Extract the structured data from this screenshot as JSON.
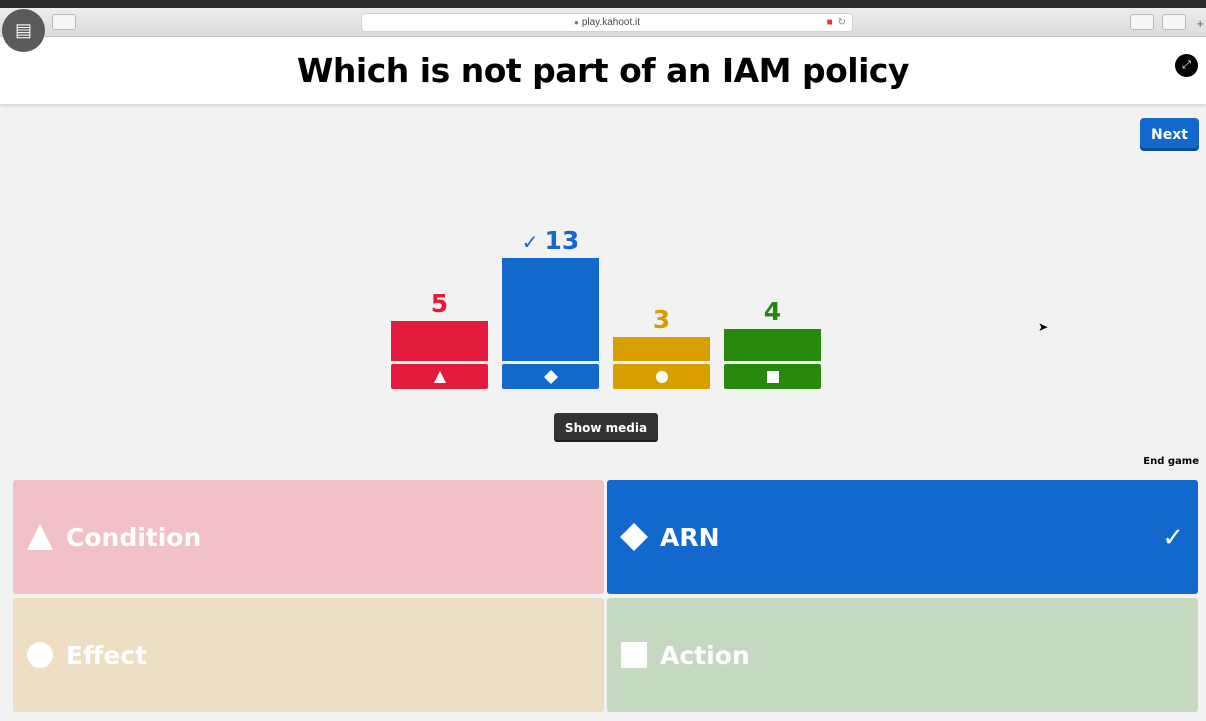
{
  "browser": {
    "url": "play.kahoot.it",
    "tab_plus": "+"
  },
  "question": {
    "title": "Which is not part of an IAM policy"
  },
  "controls": {
    "next_label": "Next",
    "show_media_label": "Show media",
    "end_game_label": "End game"
  },
  "chart_data": {
    "type": "bar",
    "categories": [
      "Condition",
      "ARN",
      "Effect",
      "Action"
    ],
    "values": [
      5,
      13,
      3,
      4
    ],
    "correct_index": 1,
    "colors": [
      "#e21b3c",
      "#1368ce",
      "#d89e00",
      "#26890c"
    ],
    "shapes": [
      "triangle",
      "diamond",
      "circle",
      "square"
    ]
  },
  "answers": [
    {
      "label": "Condition",
      "shape": "triangle",
      "color": "#f2c1c7",
      "correct": false
    },
    {
      "label": "ARN",
      "shape": "diamond",
      "color": "#1368ce",
      "correct": true
    },
    {
      "label": "Effect",
      "shape": "circle",
      "color": "#eedec4",
      "correct": false
    },
    {
      "label": "Action",
      "shape": "square",
      "color": "#c5d9c1",
      "correct": false
    }
  ],
  "icons": {
    "check": "✓"
  }
}
